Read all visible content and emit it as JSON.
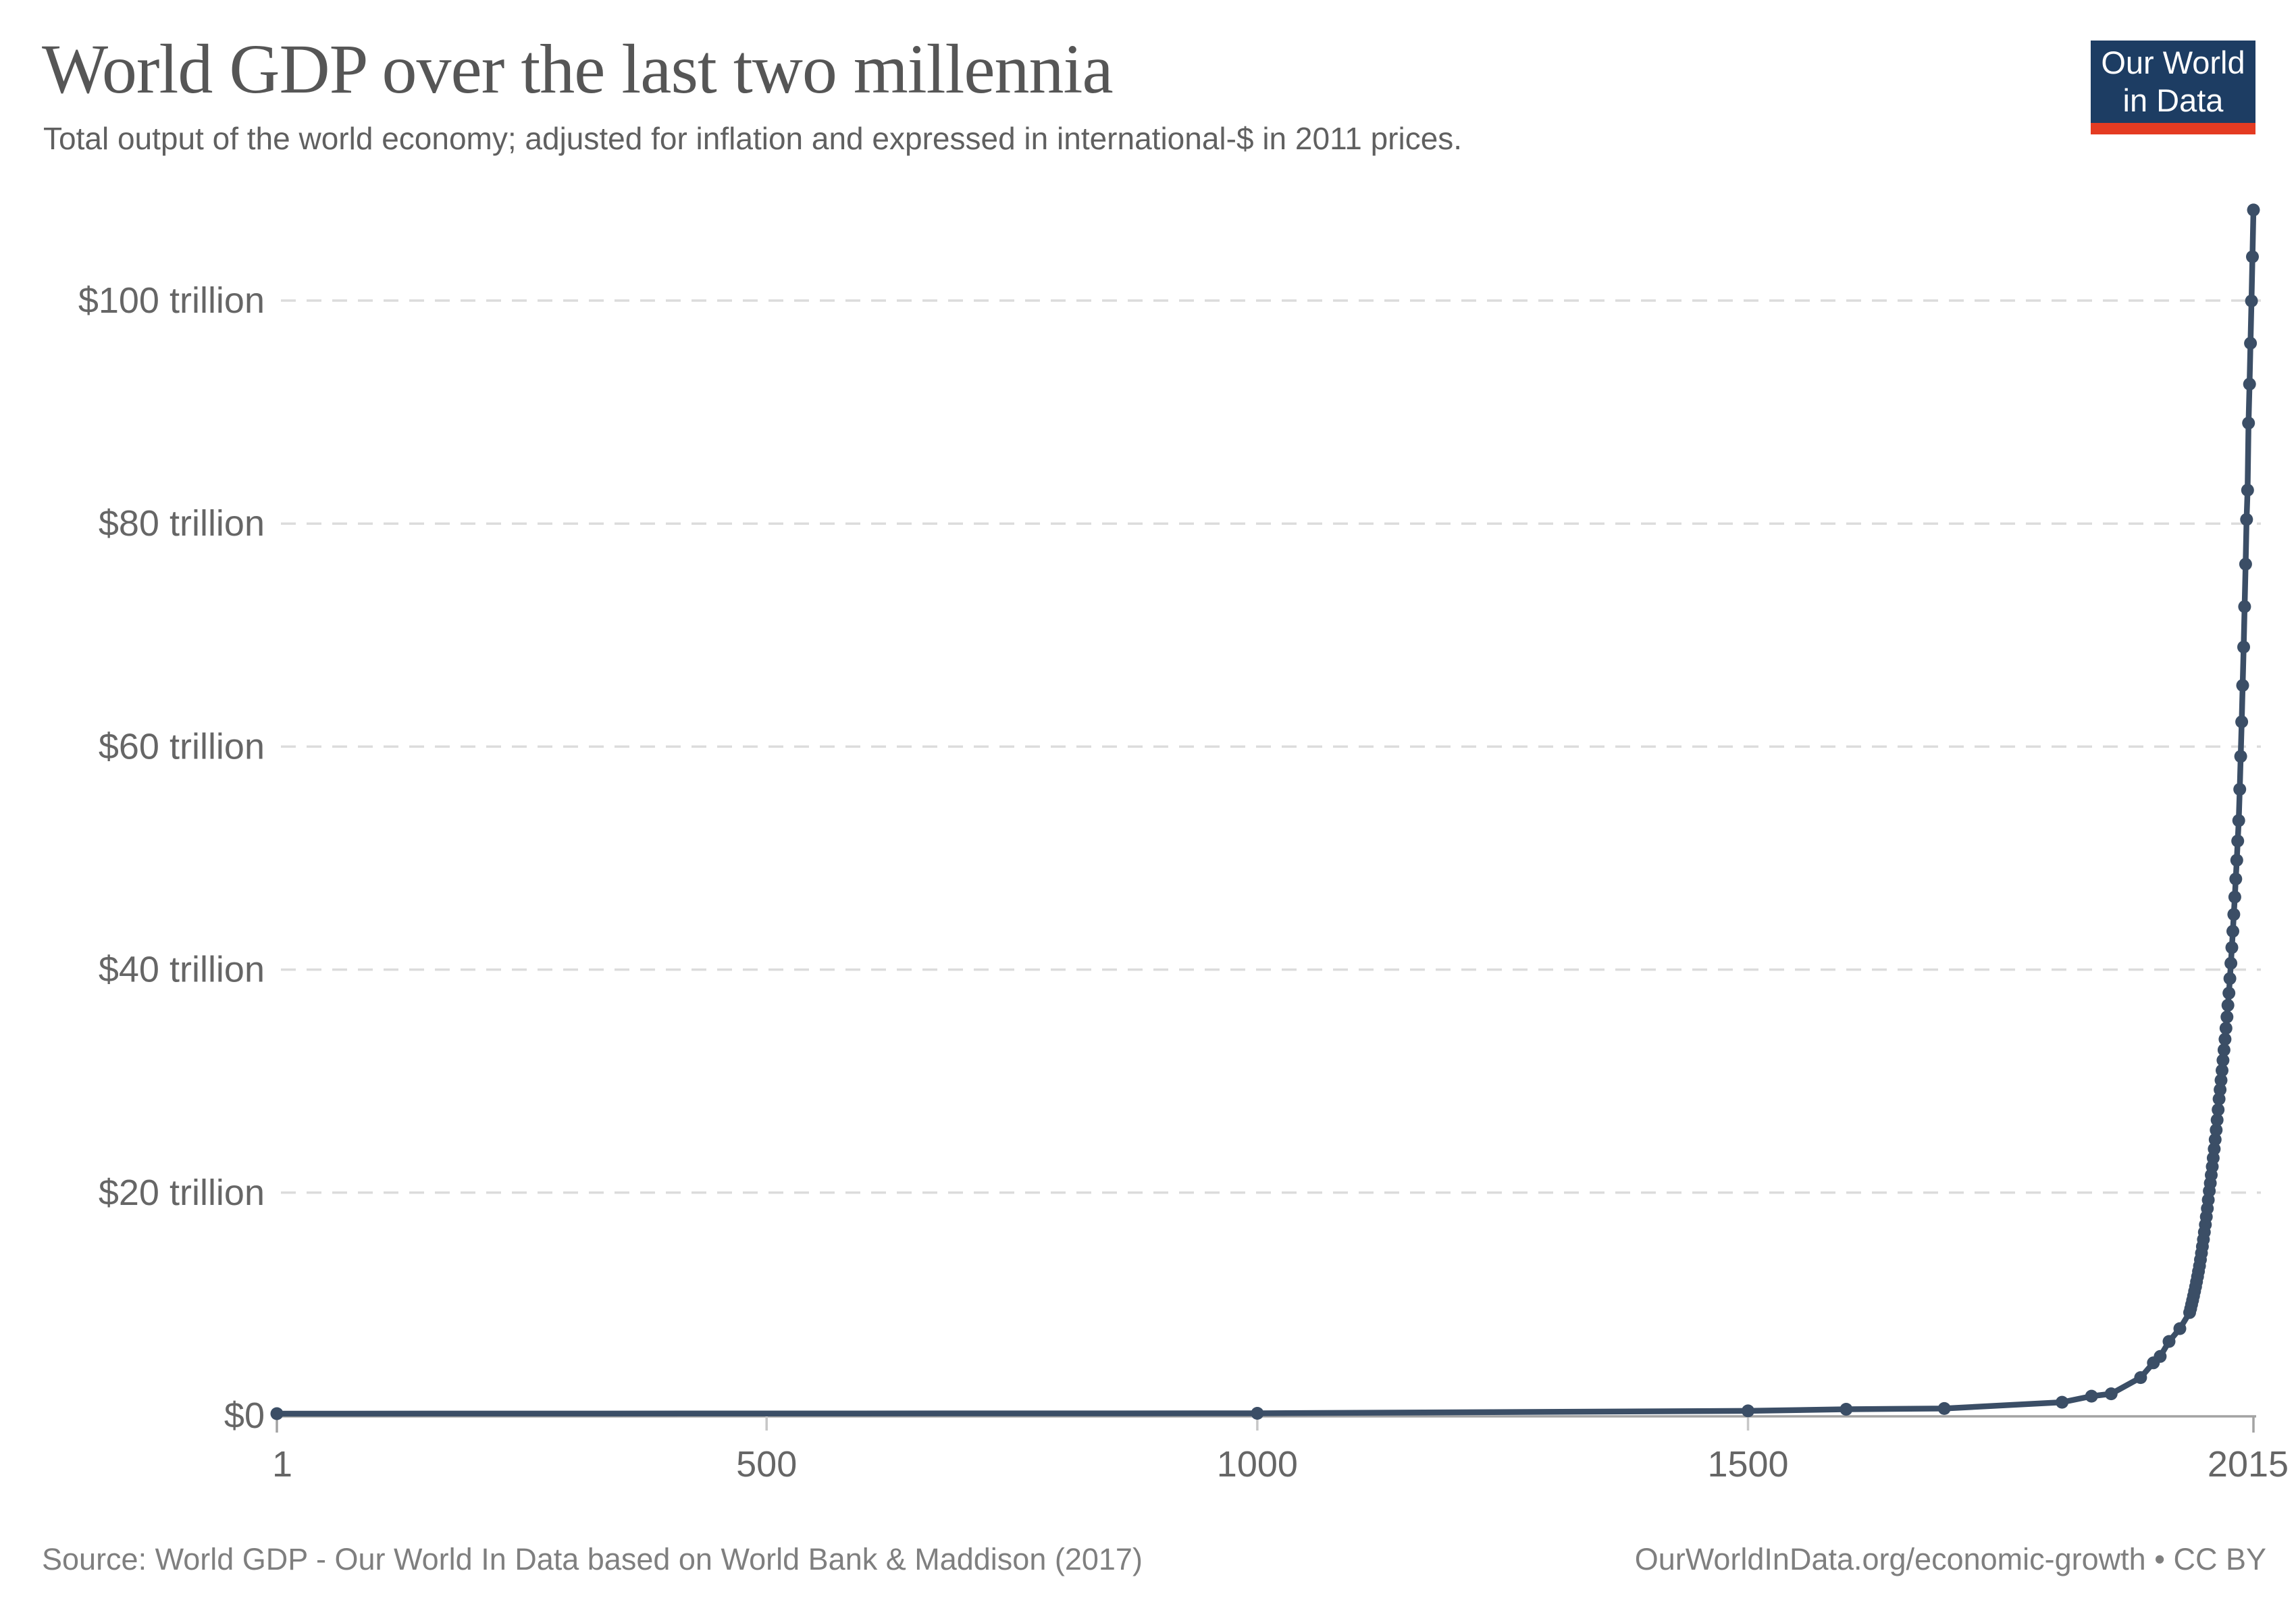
{
  "header": {
    "title": "World GDP over the last two millennia",
    "subtitle": "Total output of the world economy; adjusted for inflation and expressed in international-$ in 2011 prices."
  },
  "logo": {
    "line1": "Our World",
    "line2": "in Data",
    "bg_color": "#1d3d63",
    "accent_color": "#e43b22"
  },
  "footer": {
    "source": "Source: World GDP - Our World In Data based on World Bank & Maddison (2017)",
    "link": "OurWorldInData.org/economic-growth • CC BY"
  },
  "colors": {
    "line": "#3b4e66",
    "point": "#3b4e66",
    "gridline": "#dcdcdc",
    "axis": "#a3a3a3",
    "minor_tick": "#c7c7c7",
    "tick_label": "#666666",
    "title_text": "#565656",
    "subtitle_text": "#606060",
    "footer_text": "#7f7f7f"
  },
  "chart_data": {
    "type": "line",
    "title": "World GDP over the last two millennia",
    "xlabel": "",
    "ylabel": "",
    "unit": "trillion international-$ (2011 prices)",
    "xlim": [
      1,
      2015
    ],
    "ylim": [
      0,
      110
    ],
    "grid": "horizontal dashed",
    "legend_position": "none",
    "x_ticks": [
      {
        "value": 1,
        "label": "1"
      },
      {
        "value": 500,
        "label": "500"
      },
      {
        "value": 1000,
        "label": "1000"
      },
      {
        "value": 1500,
        "label": "1500"
      },
      {
        "value": 2015,
        "label": "2015"
      }
    ],
    "y_ticks": [
      {
        "value": 0,
        "label": "$0"
      },
      {
        "value": 20,
        "label": "$20 trillion"
      },
      {
        "value": 40,
        "label": "$40 trillion"
      },
      {
        "value": 60,
        "label": "$60 trillion"
      },
      {
        "value": 80,
        "label": "$80 trillion"
      },
      {
        "value": 100,
        "label": "$100 trillion"
      }
    ],
    "series": [
      {
        "name": "World GDP",
        "points": [
          [
            1,
            0.183
          ],
          [
            1000,
            0.211
          ],
          [
            1500,
            0.431
          ],
          [
            1600,
            0.575
          ],
          [
            1700,
            0.643
          ],
          [
            1820,
            1.203
          ],
          [
            1850,
            1.752
          ],
          [
            1870,
            1.963
          ],
          [
            1900,
            3.418
          ],
          [
            1913,
            4.736
          ],
          [
            1920,
            5.314
          ],
          [
            1929,
            6.657
          ],
          [
            1940,
            7.81
          ],
          [
            1950,
            9.251
          ],
          [
            1951,
            9.6
          ],
          [
            1952,
            9.97
          ],
          [
            1953,
            10.35
          ],
          [
            1954,
            10.74
          ],
          [
            1955,
            11.15
          ],
          [
            1956,
            11.57
          ],
          [
            1957,
            12.01
          ],
          [
            1958,
            12.47
          ],
          [
            1959,
            12.94
          ],
          [
            1960,
            13.43
          ],
          [
            1961,
            13.99
          ],
          [
            1962,
            14.57
          ],
          [
            1963,
            15.17
          ],
          [
            1964,
            15.8
          ],
          [
            1965,
            16.45
          ],
          [
            1966,
            17.13
          ],
          [
            1967,
            17.84
          ],
          [
            1968,
            18.58
          ],
          [
            1969,
            19.35
          ],
          [
            1970,
            20.15
          ],
          [
            1971,
            20.85
          ],
          [
            1972,
            21.58
          ],
          [
            1973,
            22.33
          ],
          [
            1974,
            23.11
          ],
          [
            1975,
            23.92
          ],
          [
            1976,
            24.76
          ],
          [
            1977,
            25.62
          ],
          [
            1978,
            26.52
          ],
          [
            1979,
            27.44
          ],
          [
            1980,
            28.4
          ],
          [
            1981,
            29.23
          ],
          [
            1982,
            30.08
          ],
          [
            1983,
            30.96
          ],
          [
            1984,
            31.87
          ],
          [
            1985,
            32.8
          ],
          [
            1986,
            33.76
          ],
          [
            1987,
            34.74
          ],
          [
            1988,
            35.76
          ],
          [
            1989,
            36.8
          ],
          [
            1990,
            37.89
          ],
          [
            1991,
            39.2
          ],
          [
            1992,
            40.57
          ],
          [
            1993,
            41.98
          ],
          [
            1994,
            43.44
          ],
          [
            1995,
            44.95
          ],
          [
            1996,
            46.51
          ],
          [
            1997,
            48.13
          ],
          [
            1998,
            49.81
          ],
          [
            1999,
            51.54
          ],
          [
            2000,
            53.37
          ],
          [
            2001,
            56.17
          ],
          [
            2002,
            59.12
          ],
          [
            2003,
            62.22
          ],
          [
            2004,
            65.49
          ],
          [
            2005,
            68.93
          ],
          [
            2006,
            72.55
          ],
          [
            2007,
            76.36
          ],
          [
            2008,
            80.37
          ],
          [
            2009,
            83.0
          ],
          [
            2010,
            89.01
          ],
          [
            2011,
            92.51
          ],
          [
            2012,
            96.17
          ],
          [
            2013,
            99.97
          ],
          [
            2014,
            103.93
          ],
          [
            2015,
            108.12
          ]
        ]
      }
    ]
  }
}
